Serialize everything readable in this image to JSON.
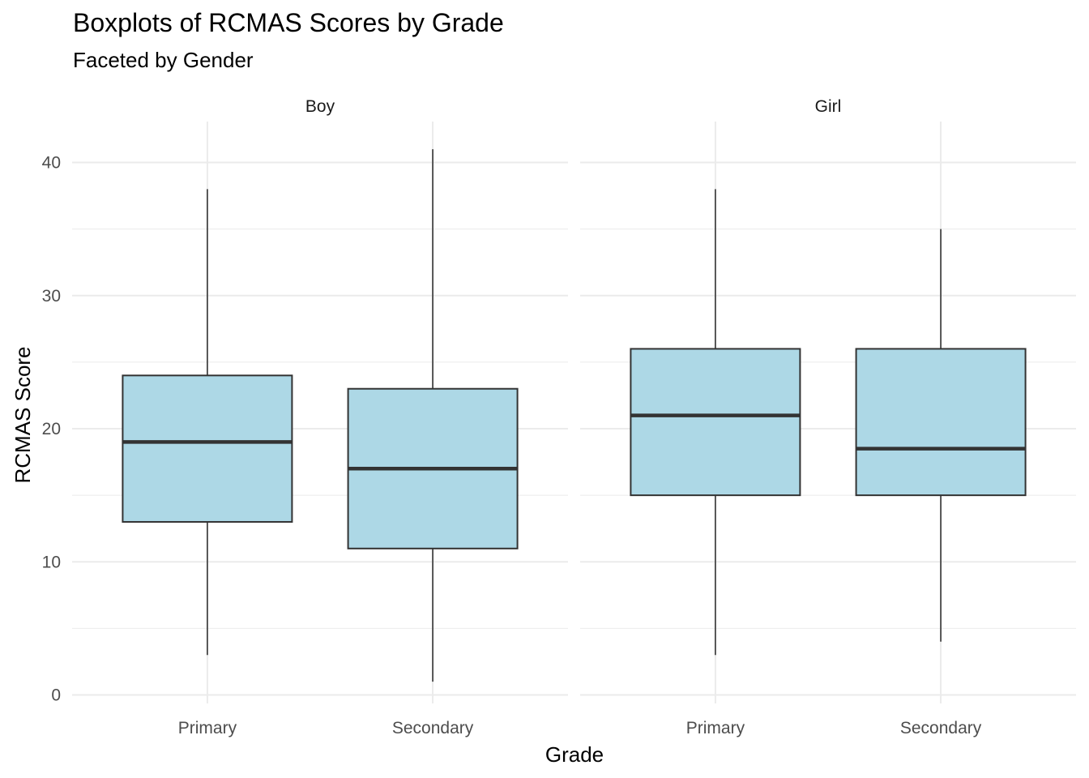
{
  "chart_data": {
    "type": "boxplot",
    "title": "Boxplots of RCMAS Scores by Grade",
    "subtitle": "Faceted by Gender",
    "xlabel": "Grade",
    "ylabel": "RCMAS Score",
    "ylim": [
      -1.5,
      43
    ],
    "y_ticks": [
      0,
      10,
      20,
      30,
      40
    ],
    "categories": [
      "Primary",
      "Secondary"
    ],
    "grid": true,
    "box_fill": "#ADD8E6",
    "box_stroke": "#333333",
    "facets": [
      {
        "label": "Boy",
        "boxes": [
          {
            "category": "Primary",
            "min": 3,
            "q1": 13,
            "median": 19,
            "q3": 24,
            "max": 38
          },
          {
            "category": "Secondary",
            "min": 1,
            "q1": 11,
            "median": 17,
            "q3": 23,
            "max": 41
          }
        ]
      },
      {
        "label": "Girl",
        "boxes": [
          {
            "category": "Primary",
            "min": 3,
            "q1": 15,
            "median": 21,
            "q3": 26,
            "max": 38
          },
          {
            "category": "Secondary",
            "min": 4,
            "q1": 15,
            "median": 18.5,
            "q3": 26,
            "max": 35
          }
        ]
      }
    ]
  }
}
